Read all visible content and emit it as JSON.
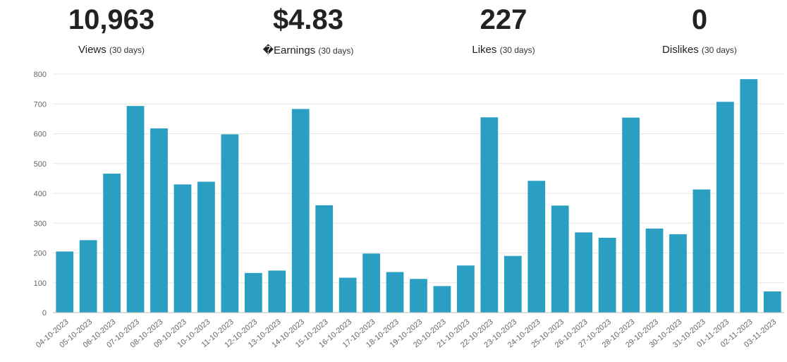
{
  "stats": [
    {
      "value": "10,963",
      "label": "Views",
      "period": "(30 days)"
    },
    {
      "value": "$4.83",
      "label": "�Earnings",
      "period": "(30 days)"
    },
    {
      "value": "227",
      "label": "Likes",
      "period": "(30 days)"
    },
    {
      "value": "0",
      "label": "Dislikes",
      "period": "(30 days)"
    }
  ],
  "colors": {
    "bar": "#2a9fc1",
    "grid": "#e5e5e5",
    "axis": "#bbbbbb"
  },
  "chart_data": {
    "type": "bar",
    "categories": [
      "04-10-2023",
      "05-10-2023",
      "06-10-2023",
      "07-10-2023",
      "08-10-2023",
      "09-10-2023",
      "10-10-2023",
      "11-10-2023",
      "12-10-2023",
      "13-10-2023",
      "14-10-2023",
      "15-10-2023",
      "16-10-2023",
      "17-10-2023",
      "18-10-2023",
      "19-10-2023",
      "20-10-2023",
      "21-10-2023",
      "22-10-2023",
      "23-10-2023",
      "24-10-2023",
      "25-10-2023",
      "26-10-2023",
      "27-10-2023",
      "28-10-2023",
      "29-10-2023",
      "30-10-2023",
      "31-10-2023",
      "01-11-2023",
      "02-11-2023",
      "03-11-2023"
    ],
    "values": [
      205,
      243,
      466,
      693,
      618,
      430,
      439,
      598,
      133,
      141,
      683,
      360,
      117,
      198,
      136,
      113,
      89,
      158,
      655,
      190,
      442,
      359,
      269,
      251,
      654,
      282,
      263,
      413,
      707,
      783,
      71
    ],
    "ylim": [
      0,
      800
    ],
    "yticks": [
      "0",
      "100",
      "200",
      "300",
      "400",
      "500",
      "600",
      "700",
      "800"
    ],
    "grid": true
  }
}
